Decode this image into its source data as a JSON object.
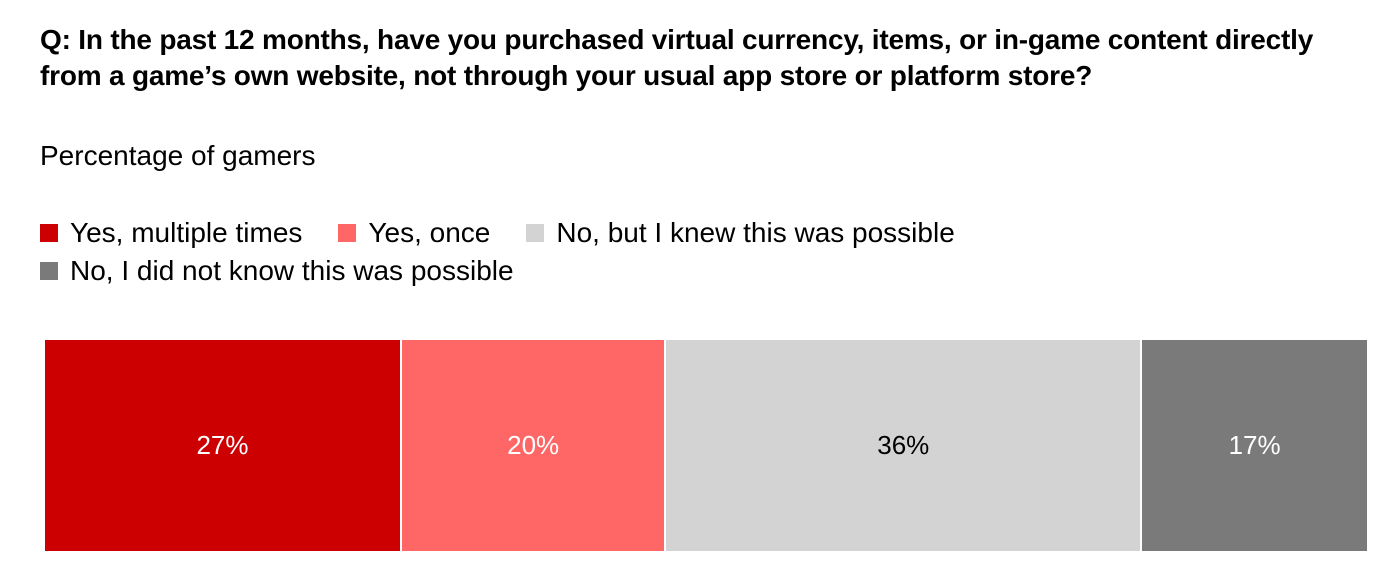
{
  "chart_data": {
    "type": "bar",
    "orientation": "horizontal-stacked",
    "title": "Q: In the past 12 months, have you purchased virtual currency, items, or in-game content directly from a game’s own website, not through your usual app store or platform store?",
    "subtitle": "Percentage of gamers",
    "legend_position": "top-left",
    "grid": false,
    "series": [
      {
        "name": "Yes, multiple times",
        "value": 27,
        "label": "27%",
        "color": "#cc0000",
        "text_color": "#ffffff"
      },
      {
        "name": "Yes, once",
        "value": 20,
        "label": "20%",
        "color": "#ff6666",
        "text_color": "#ffffff"
      },
      {
        "name": "No, but I knew this was possible",
        "value": 36,
        "label": "36%",
        "color": "#d3d3d3",
        "text_color": "#000000"
      },
      {
        "name": "No, I did not know this was possible",
        "value": 17,
        "label": "17%",
        "color": "#7a7a7a",
        "text_color": "#ffffff"
      }
    ],
    "legend_rows": [
      [
        0,
        1,
        2
      ],
      [
        3
      ]
    ]
  }
}
